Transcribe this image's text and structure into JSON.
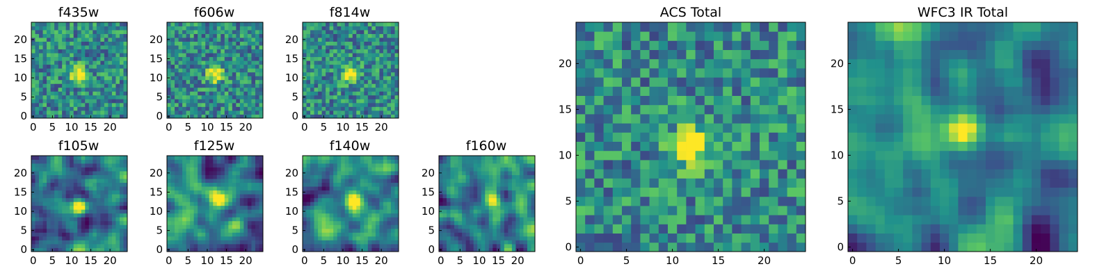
{
  "figure": {
    "colormap": [
      "#440154",
      "#3b528b",
      "#21918c",
      "#5ec962",
      "#fde725"
    ],
    "background": "#ffffff"
  },
  "chart_data": [
    {
      "type": "heatmap",
      "title": "f435w",
      "grid_size": 25,
      "seed": 11,
      "blob": [
        12,
        11
      ],
      "style": "pixel",
      "xticks": [
        "0",
        "5",
        "10",
        "15",
        "20"
      ],
      "yticks": [
        "0",
        "5",
        "10",
        "15",
        "20"
      ],
      "xlim": [
        0,
        25
      ],
      "ylim": [
        0,
        25
      ]
    },
    {
      "type": "heatmap",
      "title": "f606w",
      "grid_size": 25,
      "seed": 23,
      "blob": [
        12,
        11
      ],
      "style": "pixel",
      "xticks": [
        "0",
        "5",
        "10",
        "15",
        "20"
      ],
      "yticks": [
        "0",
        "5",
        "10",
        "15",
        "20"
      ],
      "xlim": [
        0,
        25
      ],
      "ylim": [
        0,
        25
      ]
    },
    {
      "type": "heatmap",
      "title": "f814w",
      "grid_size": 25,
      "seed": 37,
      "blob": [
        12,
        11
      ],
      "style": "pixel",
      "xticks": [
        "0",
        "5",
        "10",
        "15",
        "20"
      ],
      "yticks": [
        "0",
        "5",
        "10",
        "15",
        "20"
      ],
      "xlim": [
        0,
        25
      ],
      "ylim": [
        0,
        25
      ]
    },
    {
      "type": "heatmap",
      "title": "f105w",
      "grid_size": 25,
      "seed": 41,
      "blob": [
        12,
        11
      ],
      "style": "smooth",
      "xticks": [
        "0",
        "5",
        "10",
        "15",
        "20"
      ],
      "yticks": [
        "0",
        "5",
        "10",
        "15",
        "20"
      ],
      "xlim": [
        0,
        25
      ],
      "ylim": [
        0,
        25
      ]
    },
    {
      "type": "heatmap",
      "title": "f125w",
      "grid_size": 25,
      "seed": 53,
      "blob": [
        13,
        13
      ],
      "style": "smooth",
      "xticks": [
        "0",
        "5",
        "10",
        "15",
        "20"
      ],
      "yticks": [
        "0",
        "5",
        "10",
        "15",
        "20"
      ],
      "xlim": [
        0,
        25
      ],
      "ylim": [
        0,
        25
      ]
    },
    {
      "type": "heatmap",
      "title": "f140w",
      "grid_size": 25,
      "seed": 67,
      "blob": [
        13,
        13
      ],
      "style": "smooth",
      "xticks": [
        "0",
        "5",
        "10",
        "15",
        "20"
      ],
      "yticks": [
        "0",
        "5",
        "10",
        "15",
        "20"
      ],
      "xlim": [
        0,
        25
      ],
      "ylim": [
        0,
        25
      ]
    },
    {
      "type": "heatmap",
      "title": "f160w",
      "grid_size": 25,
      "seed": 79,
      "blob": [
        14,
        13
      ],
      "style": "smooth",
      "xticks": [
        "0",
        "5",
        "10",
        "15",
        "20"
      ],
      "yticks": [
        "0",
        "5",
        "10",
        "15",
        "20"
      ],
      "xlim": [
        0,
        25
      ],
      "ylim": [
        0,
        25
      ]
    },
    {
      "type": "heatmap",
      "title": "ACS Total",
      "grid_size": 25,
      "seed": 97,
      "blob": [
        12,
        11
      ],
      "style": "pixel",
      "xticks": [
        "0",
        "5",
        "10",
        "15",
        "20"
      ],
      "yticks": [
        "0",
        "5",
        "10",
        "15",
        "20"
      ],
      "xlim": [
        0,
        25
      ],
      "ylim": [
        0,
        25
      ]
    },
    {
      "type": "heatmap",
      "title": "WFC3 IR Total",
      "grid_size": 25,
      "seed": 131,
      "blob": [
        12,
        13
      ],
      "style": "smooth",
      "xticks": [
        "0",
        "5",
        "10",
        "15",
        "20"
      ],
      "yticks": [
        "0",
        "5",
        "10",
        "15",
        "20"
      ],
      "xlim": [
        0,
        25
      ],
      "ylim": [
        0,
        25
      ]
    }
  ]
}
